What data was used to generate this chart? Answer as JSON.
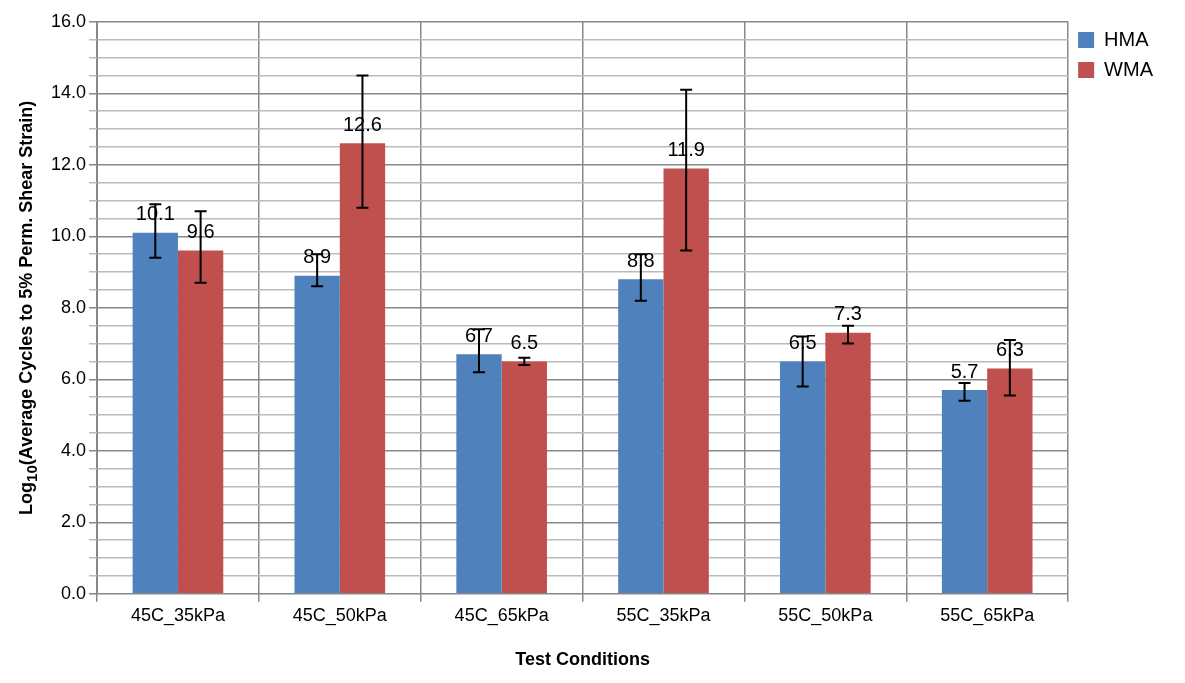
{
  "chart_data": {
    "type": "bar",
    "xlabel": "Test Conditions",
    "ylabel": "Log$_{10}$(Average Cycles to 5% Perm. Shear Strain)",
    "categories": [
      "45C_35kPa",
      "45C_50kPa",
      "45C_65kPa",
      "55C_35kPa",
      "55C_50kPa",
      "55C_65kPa"
    ],
    "series": [
      {
        "name": "HMA",
        "color": "#4f81bd",
        "values": [
          10.1,
          8.9,
          6.7,
          8.8,
          6.5,
          5.7
        ],
        "errors": [
          [
            9.4,
            10.9
          ],
          [
            8.6,
            9.5
          ],
          [
            6.2,
            7.4
          ],
          [
            8.2,
            9.5
          ],
          [
            5.8,
            7.2
          ],
          [
            5.4,
            5.9
          ]
        ]
      },
      {
        "name": "WMA",
        "color": "#c0504d",
        "values": [
          9.6,
          12.6,
          6.5,
          11.9,
          7.3,
          6.3
        ],
        "errors": [
          [
            8.7,
            10.7
          ],
          [
            10.8,
            14.5
          ],
          0.1,
          [
            9.6,
            14.1
          ],
          [
            7.0,
            7.5
          ],
          [
            5.55,
            7.1
          ]
        ]
      }
    ],
    "ylim": [
      0,
      16
    ],
    "yticks": [
      {
        "value": 0,
        "label": "0.0"
      },
      {
        "value": 0.5,
        "label": null
      },
      {
        "value": 1,
        "label": null
      },
      {
        "value": 1.5,
        "label": null
      },
      {
        "value": 2,
        "label": "2.0"
      },
      {
        "value": 2.5,
        "label": null
      },
      {
        "value": 3,
        "label": null
      },
      {
        "value": 3.5,
        "label": null
      },
      {
        "value": 4,
        "label": "4.0"
      },
      {
        "value": 4.5,
        "label": null
      },
      {
        "value": 5,
        "label": null
      },
      {
        "value": 5.5,
        "label": null
      },
      {
        "value": 6,
        "label": "6.0"
      },
      {
        "value": 6.5,
        "label": null
      },
      {
        "value": 7,
        "label": null
      },
      {
        "value": 7.5,
        "label": null
      },
      {
        "value": 8,
        "label": "8.0"
      },
      {
        "value": 8.5,
        "label": null
      },
      {
        "value": 9,
        "label": null
      },
      {
        "value": 9.5,
        "label": null
      },
      {
        "value": 10,
        "label": "10.0"
      },
      {
        "value": 10.5,
        "label": null
      },
      {
        "value": 11,
        "label": null
      },
      {
        "value": 11.5,
        "label": null
      },
      {
        "value": 12,
        "label": "12.0"
      },
      {
        "value": 12.5,
        "label": null
      },
      {
        "value": 13,
        "label": null
      },
      {
        "value": 13.5,
        "label": null
      },
      {
        "value": 14,
        "label": "14.0"
      },
      {
        "value": 14.5,
        "label": null
      },
      {
        "value": 15,
        "label": null
      },
      {
        "value": 15.5,
        "label": null
      },
      {
        "value": 16,
        "label": "16.0"
      }
    ],
    "grid": true,
    "legend": "top right",
    "data_labels": true
  }
}
